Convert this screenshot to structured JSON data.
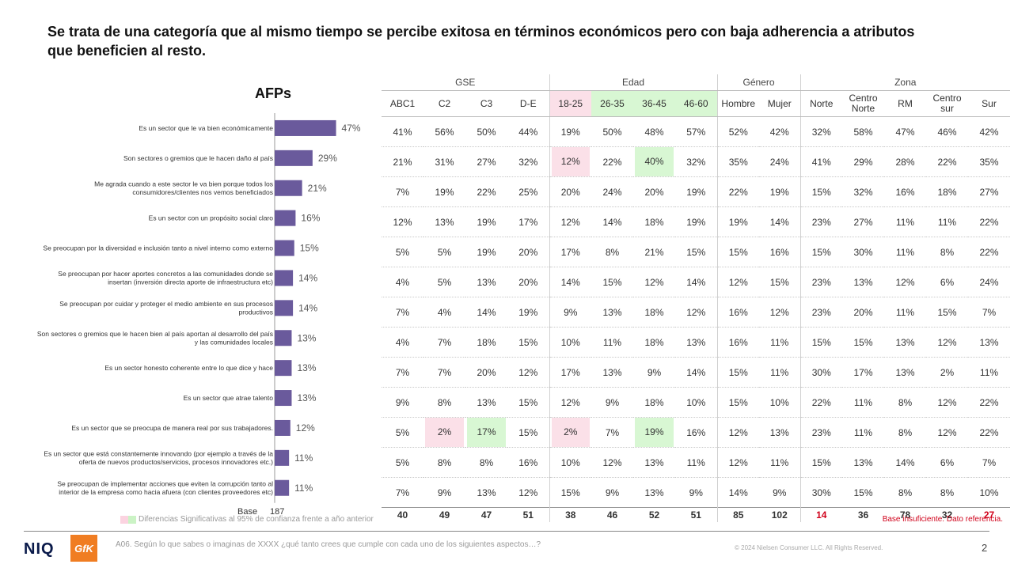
{
  "title": "Se trata de una categoría que al mismo tiempo se percibe exitosa en términos económicos pero con baja adherencia a atributos que beneficien al resto.",
  "chart_data": {
    "type": "bar",
    "title": "AFPs",
    "orientation": "horizontal",
    "bar_color": "#6a5a9c",
    "categories": [
      "Es un sector que le va bien económicamente",
      "Son sectores o gremios que le hacen daño al país",
      "Me agrada cuando a este sector le va bien porque todos los consumidores/clientes nos vemos beneficiados",
      "Es un sector con un propósito social claro",
      "Se preocupan por la diversidad e inclusión tanto a nivel interno como externo",
      "Se preocupan por hacer aportes concretos a las comunidades donde se insertan (inversión directa aporte de infraestructura etc)",
      "Se preocupan por cuidar y proteger el medio ambiente en sus procesos productivos",
      "Son sectores o gremios que le hacen bien al país aportan al desarrollo del país y las comunidades locales",
      "Es un sector honesto coherente entre lo que dice y hace",
      "Es un sector que atrae talento",
      "Es un sector que se preocupa de manera real por sus trabajadores.",
      "Es un sector que está constantemente innovando (por ejemplo a través de la oferta de nuevos productos/servicios, procesos innovadores etc.)",
      "Se preocupan de implementar acciones que eviten la corrupción tanto al interior de la empresa como hacia afuera (con clientes proveedores etc)"
    ],
    "category_lines": [
      [
        "Es un sector que le va bien económicamente"
      ],
      [
        "Son sectores o gremios que le hacen daño al país"
      ],
      [
        "Me agrada cuando a este sector le va bien porque todos los",
        "consumidores/clientes nos vemos beneficiados"
      ],
      [
        "Es un sector con un propósito social claro"
      ],
      [
        "Se preocupan por la diversidad e inclusión tanto a nivel interno como externo"
      ],
      [
        "Se preocupan por hacer aportes concretos a las comunidades donde se",
        "insertan (inversión directa aporte de infraestructura etc)"
      ],
      [
        "Se preocupan por cuidar y proteger el medio ambiente en sus procesos",
        "productivos"
      ],
      [
        "Son sectores o gremios que le hacen bien al país aportan al desarrollo del país",
        "y las comunidades locales"
      ],
      [
        "Es un sector honesto coherente entre lo que dice y hace"
      ],
      [
        "Es un sector que atrae talento"
      ],
      [
        "Es un sector que se preocupa de manera real por sus trabajadores."
      ],
      [
        "Es un sector que está constantemente innovando (por ejemplo a través de la",
        "oferta de nuevos productos/servicios, procesos innovadores etc.)"
      ],
      [
        "Se preocupan de implementar acciones que eviten la corrupción tanto al",
        "interior de la empresa como hacia afuera (con clientes proveedores etc)"
      ]
    ],
    "values": [
      47,
      29,
      21,
      16,
      15,
      14,
      14,
      13,
      13,
      13,
      12,
      11,
      11
    ],
    "value_labels": [
      "47%",
      "29%",
      "21%",
      "16%",
      "15%",
      "14%",
      "14%",
      "13%",
      "13%",
      "13%",
      "12%",
      "11%",
      "11%"
    ],
    "base_label": "Base",
    "base_value": "187"
  },
  "table": {
    "groups": [
      "GSE",
      "Edad",
      "Género",
      "Zona"
    ],
    "columns": [
      "ABC1",
      "C2",
      "C3",
      "D-E",
      "18-25",
      "26-35",
      "36-45",
      "46-60",
      "Hombre",
      "Mujer",
      "Norte",
      "Centro Norte",
      "RM",
      "Centro sur",
      "Sur"
    ],
    "column_lines": [
      [
        "ABC1"
      ],
      [
        "C2"
      ],
      [
        "C3"
      ],
      [
        "D-E"
      ],
      [
        "18-25"
      ],
      [
        "26-35"
      ],
      [
        "36-45"
      ],
      [
        "46-60"
      ],
      [
        "Hombre"
      ],
      [
        "Mujer"
      ],
      [
        "Norte"
      ],
      [
        "Centro",
        "Norte"
      ],
      [
        "RM"
      ],
      [
        "Centro",
        "sur"
      ],
      [
        "Sur"
      ]
    ],
    "rows": [
      [
        "41%",
        "56%",
        "50%",
        "44%",
        "19%",
        "50%",
        "48%",
        "57%",
        "52%",
        "42%",
        "32%",
        "58%",
        "47%",
        "46%",
        "42%"
      ],
      [
        "21%",
        "31%",
        "27%",
        "32%",
        "12%",
        "22%",
        "40%",
        "32%",
        "35%",
        "24%",
        "41%",
        "29%",
        "28%",
        "22%",
        "35%"
      ],
      [
        "7%",
        "19%",
        "22%",
        "25%",
        "20%",
        "24%",
        "20%",
        "19%",
        "22%",
        "19%",
        "15%",
        "32%",
        "16%",
        "18%",
        "27%"
      ],
      [
        "12%",
        "13%",
        "19%",
        "17%",
        "12%",
        "14%",
        "18%",
        "19%",
        "19%",
        "14%",
        "23%",
        "27%",
        "11%",
        "11%",
        "22%"
      ],
      [
        "5%",
        "5%",
        "19%",
        "20%",
        "17%",
        "8%",
        "21%",
        "15%",
        "15%",
        "16%",
        "15%",
        "30%",
        "11%",
        "8%",
        "22%"
      ],
      [
        "4%",
        "5%",
        "13%",
        "20%",
        "14%",
        "15%",
        "12%",
        "14%",
        "12%",
        "15%",
        "23%",
        "13%",
        "12%",
        "6%",
        "24%"
      ],
      [
        "7%",
        "4%",
        "14%",
        "19%",
        "9%",
        "13%",
        "18%",
        "12%",
        "16%",
        "12%",
        "23%",
        "20%",
        "11%",
        "15%",
        "7%"
      ],
      [
        "4%",
        "7%",
        "18%",
        "15%",
        "10%",
        "11%",
        "18%",
        "13%",
        "16%",
        "11%",
        "15%",
        "15%",
        "13%",
        "12%",
        "13%"
      ],
      [
        "7%",
        "7%",
        "20%",
        "12%",
        "17%",
        "13%",
        "9%",
        "14%",
        "15%",
        "11%",
        "30%",
        "17%",
        "13%",
        "2%",
        "11%"
      ],
      [
        "9%",
        "8%",
        "13%",
        "15%",
        "12%",
        "9%",
        "18%",
        "10%",
        "15%",
        "10%",
        "22%",
        "11%",
        "8%",
        "12%",
        "22%"
      ],
      [
        "5%",
        "2%",
        "17%",
        "15%",
        "2%",
        "7%",
        "19%",
        "16%",
        "12%",
        "13%",
        "23%",
        "11%",
        "8%",
        "12%",
        "22%"
      ],
      [
        "5%",
        "8%",
        "8%",
        "16%",
        "10%",
        "12%",
        "13%",
        "11%",
        "12%",
        "11%",
        "15%",
        "13%",
        "14%",
        "6%",
        "7%"
      ],
      [
        "7%",
        "9%",
        "13%",
        "12%",
        "15%",
        "9%",
        "13%",
        "9%",
        "14%",
        "9%",
        "30%",
        "15%",
        "8%",
        "8%",
        "10%"
      ]
    ],
    "base": [
      "40",
      "49",
      "47",
      "51",
      "38",
      "46",
      "52",
      "51",
      "85",
      "102",
      "14",
      "36",
      "78",
      "32",
      "27"
    ]
  },
  "colors": {
    "significance_pink": "#fbe0e8",
    "significance_green": "#d8f7d3",
    "insufficient_base": "#d0021b"
  },
  "legend_text": "Diferencias Significativas al 95% de confianza frente a año anterior",
  "insufficient_note": "Base insuficiente. Dato referencia.",
  "footnote": "A06. Según lo que sabes o imaginas de XXXX ¿qué tanto crees que cumple con cada uno de los siguientes aspectos…?",
  "copyright": "© 2024 Nielsen Consumer LLC. All Rights Reserved.",
  "page_number": "2",
  "logos": {
    "niq": "NIQ",
    "gfk": "GfK"
  }
}
